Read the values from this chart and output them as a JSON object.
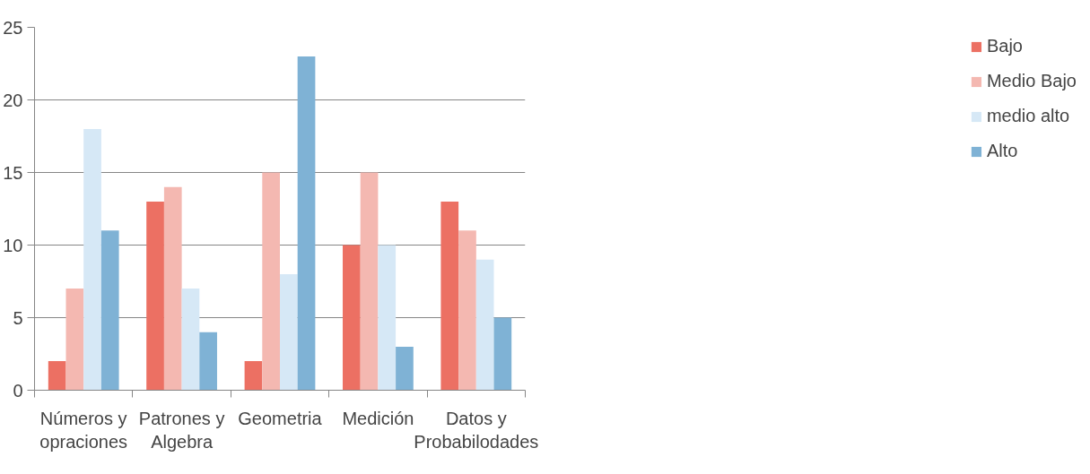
{
  "chart_data": {
    "type": "bar",
    "categories": [
      "Números y opraciones",
      "Patrones y Algebra",
      "Geometria",
      "Medición",
      "Datos y Probabilodades"
    ],
    "series": [
      {
        "name": "Bajo",
        "color": "#ec7063",
        "values": [
          2,
          13,
          2,
          10,
          13
        ]
      },
      {
        "name": "Medio Bajo",
        "color": "#f4b8b1",
        "values": [
          7,
          14,
          15,
          15,
          11
        ]
      },
      {
        "name": "medio alto",
        "color": "#d6e8f6",
        "values": [
          18,
          7,
          8,
          10,
          9
        ]
      },
      {
        "name": "Alto",
        "color": "#7fb2d5",
        "values": [
          11,
          4,
          23,
          3,
          5
        ]
      }
    ],
    "ylim": [
      0,
      25
    ],
    "yticks": [
      0,
      5,
      10,
      15,
      20,
      25
    ],
    "grid": "y",
    "legend": "right"
  }
}
